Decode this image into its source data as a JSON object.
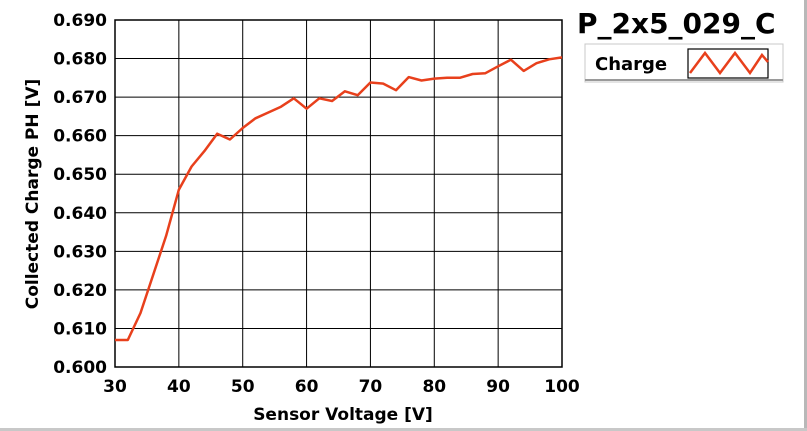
{
  "chart_data": {
    "type": "line",
    "title": "P_2x5_029_C",
    "xlabel": "Sensor Voltage [V]",
    "ylabel": "Collected Charge PH [V]",
    "xlim": [
      30,
      100
    ],
    "ylim": [
      0.6,
      0.69
    ],
    "x_ticks": [
      30,
      40,
      50,
      60,
      70,
      80,
      90,
      100
    ],
    "y_ticks": [
      0.6,
      0.61,
      0.62,
      0.63,
      0.64,
      0.65,
      0.66,
      0.67,
      0.68,
      0.69
    ],
    "x_tick_labels": [
      "30",
      "40",
      "50",
      "60",
      "70",
      "80",
      "90",
      "100"
    ],
    "y_tick_labels": [
      "0.600",
      "0.610",
      "0.620",
      "0.630",
      "0.640",
      "0.650",
      "0.660",
      "0.670",
      "0.680",
      "0.690"
    ],
    "grid": true,
    "legend_position": "top-right",
    "series": [
      {
        "name": "Charge",
        "color": "#e8401c",
        "x": [
          30,
          32,
          34,
          36,
          38,
          40,
          42,
          44,
          46,
          48,
          50,
          52,
          54,
          56,
          58,
          60,
          62,
          64,
          66,
          68,
          70,
          72,
          74,
          76,
          78,
          80,
          82,
          84,
          86,
          88,
          90,
          92,
          94,
          96,
          98,
          100
        ],
        "y": [
          0.607,
          0.607,
          0.614,
          0.624,
          0.634,
          0.646,
          0.652,
          0.656,
          0.6605,
          0.659,
          0.662,
          0.6645,
          0.666,
          0.6675,
          0.6697,
          0.667,
          0.6697,
          0.669,
          0.6715,
          0.6705,
          0.6738,
          0.6735,
          0.6718,
          0.6752,
          0.6743,
          0.6748,
          0.675,
          0.675,
          0.676,
          0.6762,
          0.678,
          0.6797,
          0.6768,
          0.6788,
          0.6798,
          0.6803
        ]
      }
    ]
  }
}
